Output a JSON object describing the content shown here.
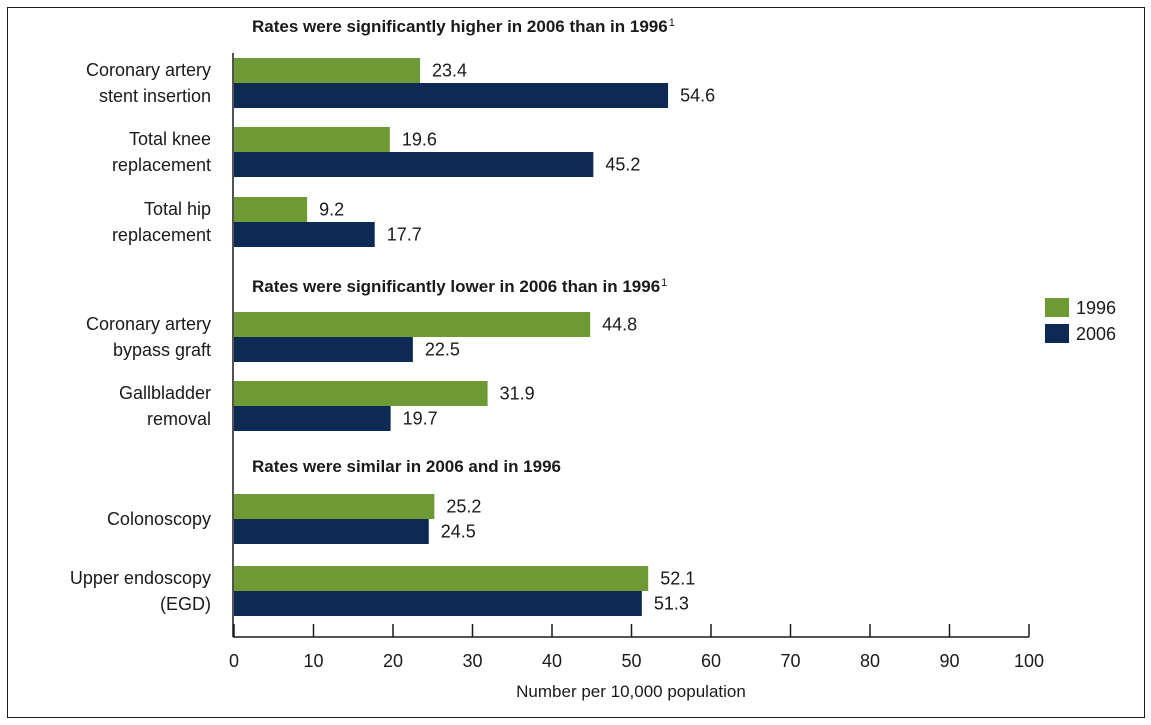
{
  "chart_data": {
    "type": "bar",
    "orientation": "horizontal",
    "xlabel": "Number per 10,000 population",
    "xlim": [
      0,
      100
    ],
    "ticks": [
      0,
      10,
      20,
      30,
      40,
      50,
      60,
      70,
      80,
      90,
      100
    ],
    "legend_placement": "right",
    "grid": false,
    "series": [
      {
        "name": "1996",
        "color": "#6e9a35"
      },
      {
        "name": "2006",
        "color": "#0d2a55"
      }
    ],
    "groups": [
      {
        "heading": "Rates were significantly higher in 2006 than in 1996",
        "footnote": "1",
        "items": [
          {
            "label": [
              "Coronary artery",
              "stent insertion"
            ],
            "values": [
              23.4,
              54.6
            ],
            "value_labels": [
              "23.4",
              "54.6"
            ]
          },
          {
            "label": [
              "Total knee",
              "replacement"
            ],
            "values": [
              19.6,
              45.2
            ],
            "value_labels": [
              "19.6",
              "45.2"
            ]
          },
          {
            "label": [
              "Total hip",
              "replacement"
            ],
            "values": [
              9.2,
              17.7
            ],
            "value_labels": [
              "9.2",
              "17.7"
            ]
          }
        ]
      },
      {
        "heading": "Rates were significantly lower in 2006 than in 1996",
        "footnote": "1",
        "items": [
          {
            "label": [
              "Coronary artery",
              "bypass graft"
            ],
            "values": [
              44.8,
              22.5
            ],
            "value_labels": [
              "44.8",
              "22.5"
            ]
          },
          {
            "label": [
              "Gallbladder",
              "removal"
            ],
            "values": [
              31.9,
              19.7
            ],
            "value_labels": [
              "31.9",
              "19.7"
            ]
          }
        ]
      },
      {
        "heading": "Rates were similar in 2006 and in 1996",
        "footnote": "",
        "items": [
          {
            "label": [
              "Colonoscopy"
            ],
            "values": [
              25.2,
              24.5
            ],
            "value_labels": [
              "25.2",
              "24.5"
            ]
          },
          {
            "label": [
              "Upper endoscopy",
              "(EGD)"
            ],
            "values": [
              52.1,
              51.3
            ],
            "value_labels": [
              "52.1",
              "51.3"
            ]
          }
        ]
      }
    ]
  }
}
